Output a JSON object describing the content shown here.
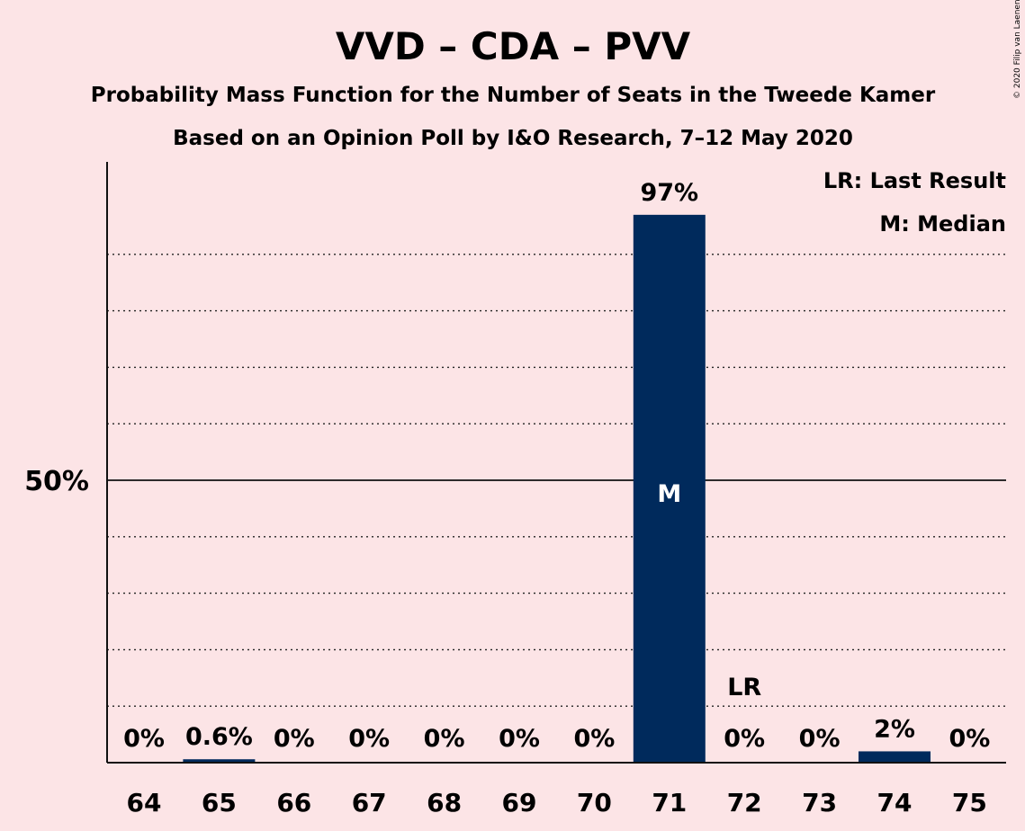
{
  "chart_data": {
    "type": "bar",
    "title": "VVD – CDA – PVV",
    "subtitle": "Probability Mass Function for the Number of Seats in the Tweede Kamer",
    "subtitle2": "Based on an Opinion Poll by I&O Research, 7–12 May 2020",
    "copyright": "© 2020 Filip van Laenen",
    "categories": [
      "64",
      "65",
      "66",
      "67",
      "68",
      "69",
      "70",
      "71",
      "72",
      "73",
      "74",
      "75"
    ],
    "values": [
      0,
      0.6,
      0,
      0,
      0,
      0,
      0,
      97,
      0,
      0,
      2,
      0
    ],
    "value_labels": [
      "0%",
      "0.6%",
      "0%",
      "0%",
      "0%",
      "0%",
      "0%",
      "97%",
      "0%",
      "0%",
      "2%",
      "0%"
    ],
    "ylim": [
      0,
      105
    ],
    "ytick_major": {
      "value": 50,
      "label": "50%"
    },
    "ygrid_minor": [
      10,
      20,
      30,
      40,
      60,
      70,
      80,
      90
    ],
    "grid": true,
    "bar_color": "#002a5c",
    "median": {
      "category": "71",
      "label": "M"
    },
    "last_result": {
      "category": "72",
      "label": "LR"
    },
    "legend": {
      "position": "top-right",
      "entries": [
        "LR: Last Result",
        "M: Median"
      ]
    }
  }
}
